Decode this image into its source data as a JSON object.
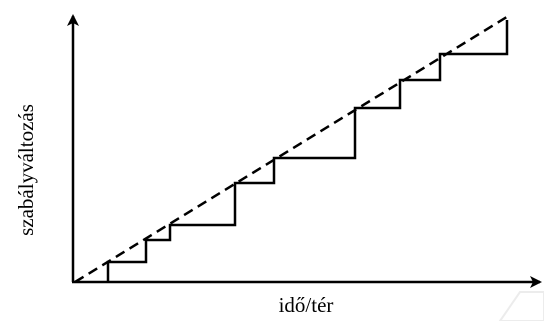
{
  "diagram": {
    "x_axis_label": "idő/tér",
    "y_axis_label": "szabályváltozás",
    "series": [
      {
        "line_style": "dashed",
        "color": "#000000"
      },
      {
        "line_style": "solid-step",
        "color": "#000000"
      }
    ]
  }
}
